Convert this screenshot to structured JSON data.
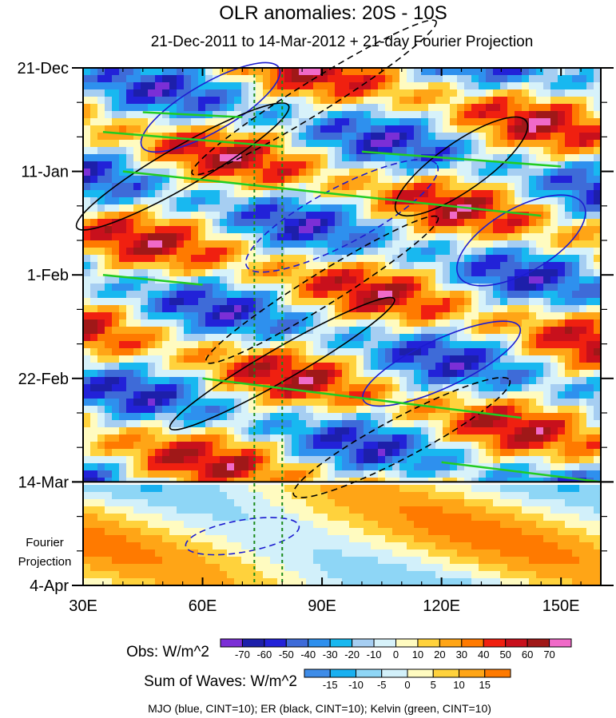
{
  "chart_data": {
    "type": "heatmap",
    "title": "OLR anomalies: 20S - 10S",
    "subtitle": "21-Dec-2011 to 14-Mar-2012 + 21-day Fourier Projection",
    "x_ticks": [
      {
        "value": 30,
        "label": "30E"
      },
      {
        "value": 60,
        "label": "60E"
      },
      {
        "value": 90,
        "label": "90E"
      },
      {
        "value": 120,
        "label": "120E"
      },
      {
        "value": 150,
        "label": "150E"
      }
    ],
    "xlim": [
      30,
      160
    ],
    "y_ticks": [
      {
        "day": 0,
        "label": "21-Dec"
      },
      {
        "day": 21,
        "label": "11-Jan"
      },
      {
        "day": 42,
        "label": "1-Feb"
      },
      {
        "day": 63,
        "label": "22-Feb"
      },
      {
        "day": 84,
        "label": "14-Mar"
      },
      {
        "day": 105,
        "label": "4-Apr"
      }
    ],
    "ylim": [
      0,
      105
    ],
    "projection_label": [
      "Fourier",
      "Projection"
    ],
    "projection_start_day": 84,
    "reference_lines_lon": [
      73,
      80
    ],
    "obs_colorbar": {
      "label": "Obs: W/m^2",
      "ticks": [
        "-70",
        "-60",
        "-50",
        "-40",
        "-30",
        "-20",
        "-10",
        "0",
        "10",
        "20",
        "30",
        "40",
        "50",
        "60",
        "70"
      ],
      "colors": [
        "#7b2fd6",
        "#1d1faa",
        "#2222d8",
        "#3e6bd8",
        "#2e90ee",
        "#18b8f0",
        "#a6cef2",
        "#d7f2fa",
        "#fffbc0",
        "#ffd23c",
        "#ffa516",
        "#ff7a00",
        "#f02010",
        "#c8101c",
        "#a01818",
        "#f06ac8"
      ]
    },
    "waves_colorbar": {
      "label": "Sum of Waves: W/m^2",
      "ticks": [
        "-15",
        "-10",
        "-5",
        "0",
        "5",
        "10",
        "15"
      ],
      "colors": [
        "#3e8ce8",
        "#18b0f0",
        "#8ed6f6",
        "#d2f0fa",
        "#fffbc0",
        "#ffd23c",
        "#ffa516",
        "#ff7a00"
      ]
    },
    "footnote": "MJO (blue, CINT=10); ER (black, CINT=10); Kelvin (green, CINT=10)",
    "series": [
      {
        "name": "MJO",
        "color": "#1c1cd0"
      },
      {
        "name": "ER",
        "color": "#000000"
      },
      {
        "name": "Kelvin",
        "color": "#22cc22"
      }
    ]
  }
}
